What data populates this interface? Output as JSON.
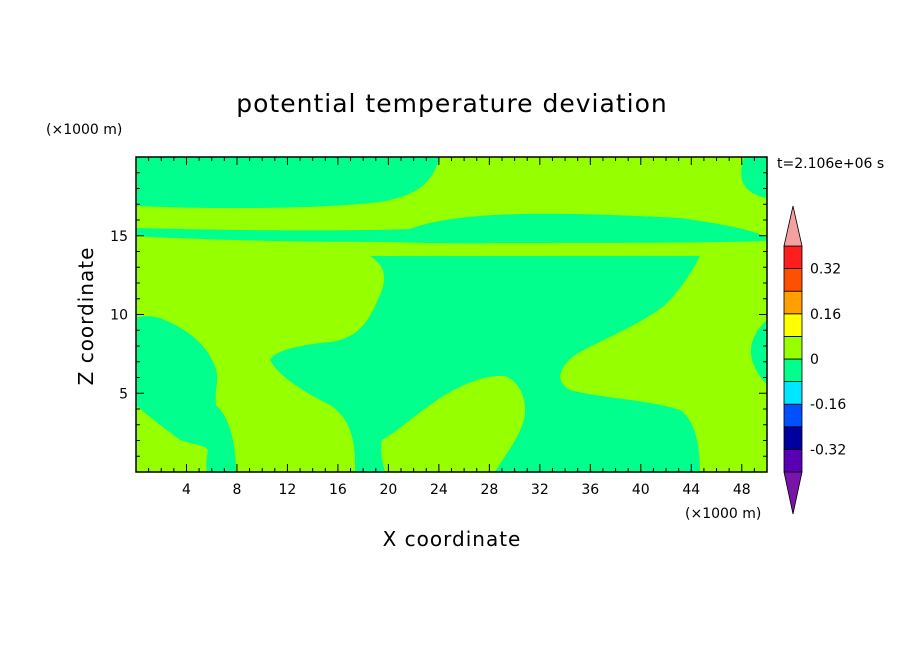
{
  "chart_data": {
    "type": "contour",
    "title": "potential temperature deviation",
    "xlabel": "X coordinate",
    "ylabel": "Z coordinate",
    "x_unit": "(×1000 m)",
    "y_unit": "(×1000 m)",
    "time_label": "t=2.106e+06 s",
    "xlim": [
      0,
      50
    ],
    "ylim": [
      0,
      20
    ],
    "x_ticks": [
      4,
      8,
      12,
      16,
      20,
      24,
      28,
      32,
      36,
      40,
      44,
      48
    ],
    "y_ticks": [
      5,
      10,
      15
    ],
    "colorbar": {
      "levels": [
        -0.4,
        -0.32,
        -0.24,
        -0.16,
        -0.08,
        0,
        0.08,
        0.16,
        0.24,
        0.32,
        0.4
      ],
      "labels": [
        "-0.32",
        "-0.16",
        "0",
        "0.16",
        "0.32"
      ],
      "label_values": [
        -0.32,
        -0.16,
        0,
        0.16,
        0.32
      ],
      "colors": [
        "#5a00b4",
        "#0000a0",
        "#0050ff",
        "#00e6ff",
        "#00ff8c",
        "#96ff00",
        "#ffff00",
        "#ffa000",
        "#ff5000",
        "#ff1e1e"
      ],
      "under_color": "#7814aa",
      "over_color": "#f5a0a0"
    },
    "regions": [
      {
        "level": "0 to 0.08",
        "color": "#96ff00"
      },
      {
        "level": "-0.08 to 0",
        "color": "#00ff8c"
      }
    ]
  }
}
